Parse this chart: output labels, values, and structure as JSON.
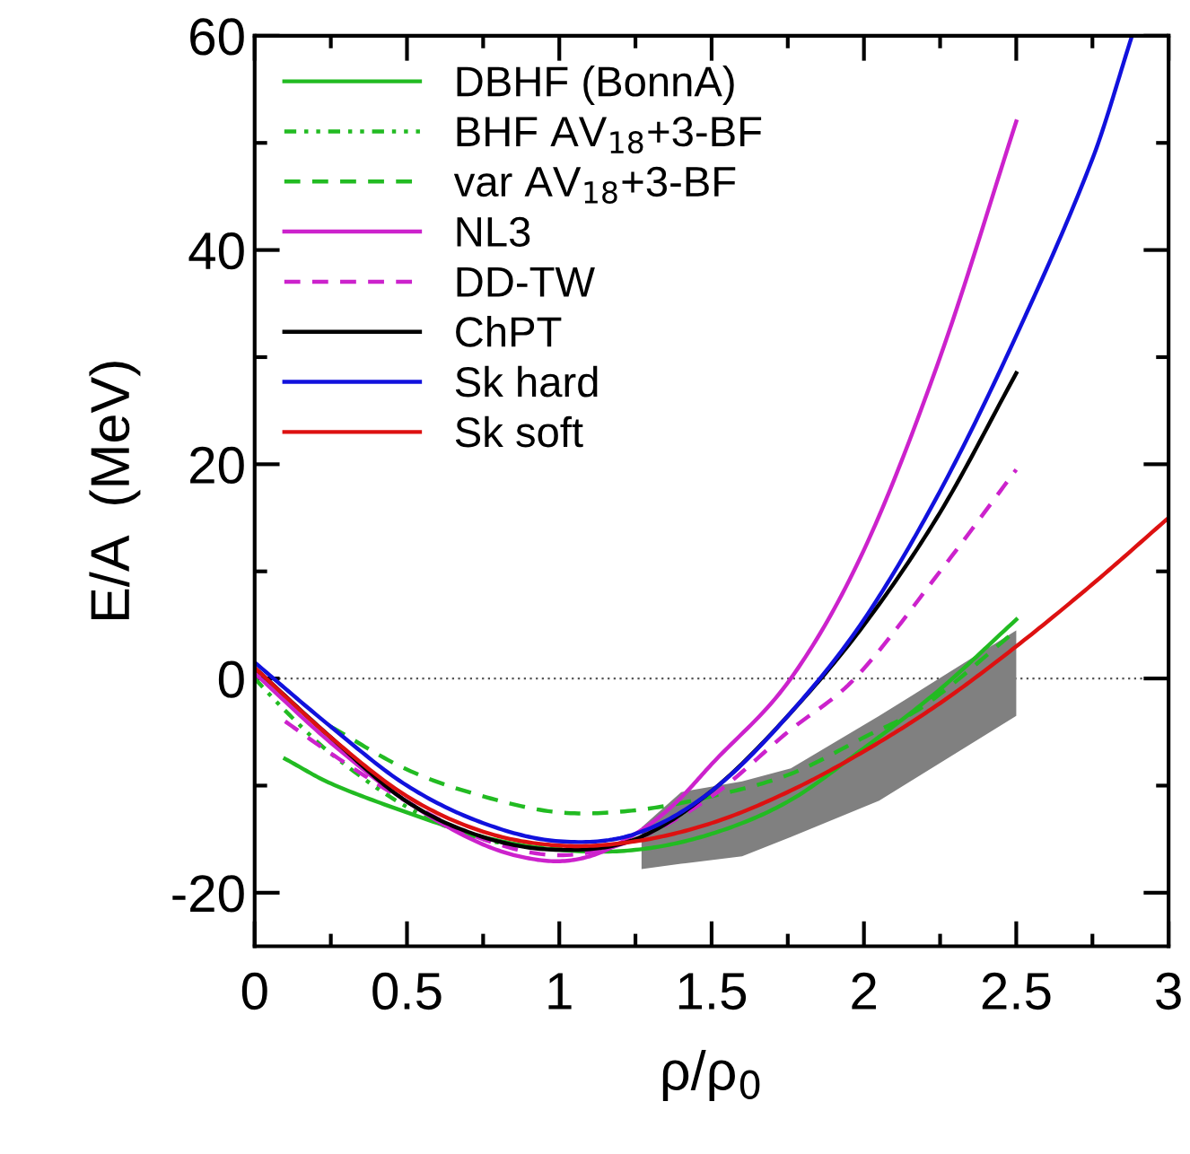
{
  "chart_data": {
    "type": "line",
    "xlabel": "ρ/ρ$_{0}$",
    "ylabel": "E/A  (MeV)",
    "xlim": [
      0,
      3
    ],
    "ylim": [
      -25,
      60
    ],
    "xticks": [
      0,
      0.5,
      1,
      1.5,
      2,
      2.5,
      3
    ],
    "yticks": [
      -20,
      0,
      20,
      40,
      60
    ],
    "grid": false,
    "legend": "top left",
    "marker": "none",
    "ref_lines": [
      {
        "axis": "y",
        "value": 0,
        "color": "#555555",
        "line_style": "dotted"
      }
    ],
    "series": [
      {
        "type": "line",
        "color": "#808080",
        "x": [
          1.27,
          1.4,
          1.6,
          1.76,
          2.05,
          2.5
        ],
        "values": [
          null,
          null,
          null,
          null,
          null,
          null
        ],
        "upper": [
          -13.9,
          -10.6,
          -9.6,
          -8.4,
          -3.5,
          4.5
        ],
        "lower": [
          -17.8,
          -17.3,
          -16.6,
          -14.8,
          -11.4,
          -3.5
        ]
      },
      {
        "name": "DBHF (BonnA)",
        "color": "#22bb22",
        "line_style": "solid",
        "x": [
          0.1,
          0.25,
          0.5,
          0.75,
          1.0,
          1.25,
          1.5,
          1.75,
          2.0,
          2.25,
          2.5
        ],
        "values": [
          -7.5,
          -9.8,
          -12.5,
          -14.8,
          -16.0,
          -16.0,
          -14.5,
          -11.5,
          -6.5,
          -1.0,
          5.5
        ]
      },
      {
        "name": "BHF AV$_{18}$+3-BF",
        "color": "#22bb22",
        "line_style": "dashdotdot",
        "x": [
          0,
          0.1,
          0.25,
          0.5,
          0.75,
          1.0,
          1.2
        ],
        "values": [
          0,
          -3,
          -7,
          -12,
          -15,
          -15.8,
          -15.5
        ]
      },
      {
        "name": "var AV$_{18}$+3-BF",
        "color": "#22bb22",
        "line_style": "dashed",
        "x": [
          0.25,
          0.5,
          0.75,
          1.0,
          1.25,
          1.5,
          1.76,
          2.0,
          2.2,
          2.5
        ],
        "values": [
          -4.5,
          -8.5,
          -11.0,
          -12.5,
          -12.3,
          -11.0,
          -8.9,
          -5.5,
          -2.5,
          4.5
        ]
      },
      {
        "name": "NL3",
        "color": "#cc22cc",
        "line_style": "solid",
        "x": [
          0,
          0.25,
          0.5,
          0.75,
          0.95,
          1.1,
          1.25,
          1.375,
          1.5,
          1.76,
          2.0,
          2.25,
          2.5
        ],
        "values": [
          0.5,
          -6,
          -11.5,
          -15.5,
          -17,
          -16.6,
          -14.5,
          -11.8,
          -8,
          0,
          12,
          30,
          52
        ]
      },
      {
        "name": "DD-TW",
        "color": "#cc22cc",
        "line_style": "dashed",
        "x": [
          0.1,
          0.25,
          0.5,
          0.75,
          1.0,
          1.25,
          1.5,
          1.75,
          1.97,
          2.25,
          2.5
        ],
        "values": [
          -4,
          -7,
          -11.5,
          -15,
          -16.5,
          -15,
          -11,
          -5,
          0,
          10,
          19.5
        ]
      },
      {
        "name": "ChPT",
        "color": "#000000",
        "line_style": "solid",
        "x": [
          0,
          0.25,
          0.5,
          0.75,
          1.0,
          1.25,
          1.5,
          1.75,
          2.0,
          2.25,
          2.5
        ],
        "values": [
          1,
          -5.5,
          -11.5,
          -14.8,
          -16,
          -15,
          -10.5,
          -3.5,
          5,
          15.5,
          28.5
        ]
      },
      {
        "name": "Sk hard",
        "color": "#1111dd",
        "line_style": "solid",
        "x": [
          0,
          0.25,
          0.5,
          0.75,
          1.0,
          1.25,
          1.5,
          1.75,
          2.0,
          2.25,
          2.5,
          2.75,
          2.88
        ],
        "values": [
          1.5,
          -4.5,
          -10,
          -13.5,
          -15.2,
          -14.5,
          -10.5,
          -3.5,
          5.5,
          17.5,
          32,
          48.5,
          60
        ]
      },
      {
        "name": "Sk soft",
        "color": "#dd1111",
        "line_style": "solid",
        "x": [
          0,
          0.25,
          0.5,
          0.75,
          1.0,
          1.25,
          1.5,
          1.75,
          2.0,
          2.25,
          2.5,
          2.75,
          3.0
        ],
        "values": [
          1,
          -5.5,
          -11,
          -14.3,
          -15.6,
          -15.2,
          -13.5,
          -10.6,
          -6.8,
          -2.3,
          3,
          8.8,
          15
        ]
      }
    ]
  }
}
